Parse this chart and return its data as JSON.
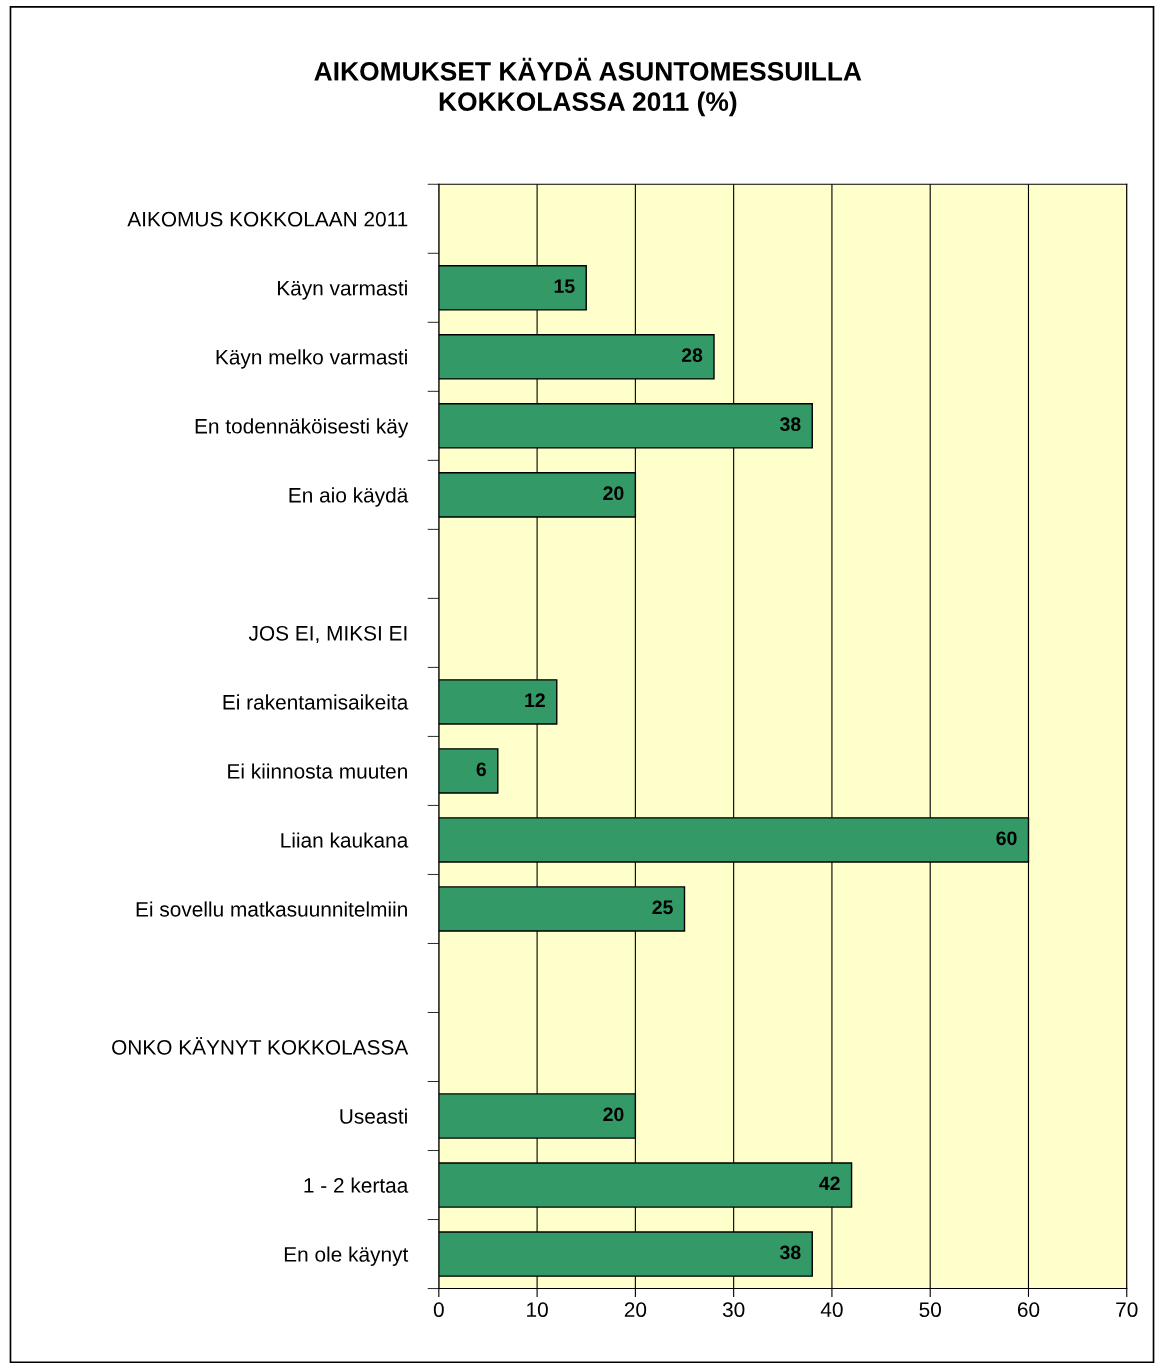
{
  "chart_data": {
    "type": "bar",
    "orientation": "horizontal",
    "title": "AIKOMUKSET KÄYDÄ ASUNTOMESSUILLA\nKOKKOLASSA 2011 (%)",
    "categories": [
      "AIKOMUS KOKKOLAAN 2011",
      "Käyn varmasti",
      "Käyn melko varmasti",
      "En todennäköisesti käy",
      "En aio käydä",
      null,
      "JOS EI, MIKSI EI",
      "Ei rakentamisaikeita",
      "Ei kiinnosta muuten",
      "Liian kaukana",
      "Ei sovellu matkasuunnitelmiin",
      null,
      "ONKO KÄYNYT KOKKOLASSA",
      "Useasti",
      "1 - 2 kertaa",
      "En ole käynyt"
    ],
    "values": [
      null,
      15,
      28,
      38,
      20,
      null,
      null,
      12,
      6,
      60,
      25,
      null,
      null,
      20,
      42,
      38
    ],
    "color": "#339966",
    "xlim": [
      0,
      70
    ],
    "xticks": [
      0,
      10,
      20,
      30,
      40,
      50,
      60,
      70
    ],
    "grid": "x",
    "data_labels": true
  }
}
